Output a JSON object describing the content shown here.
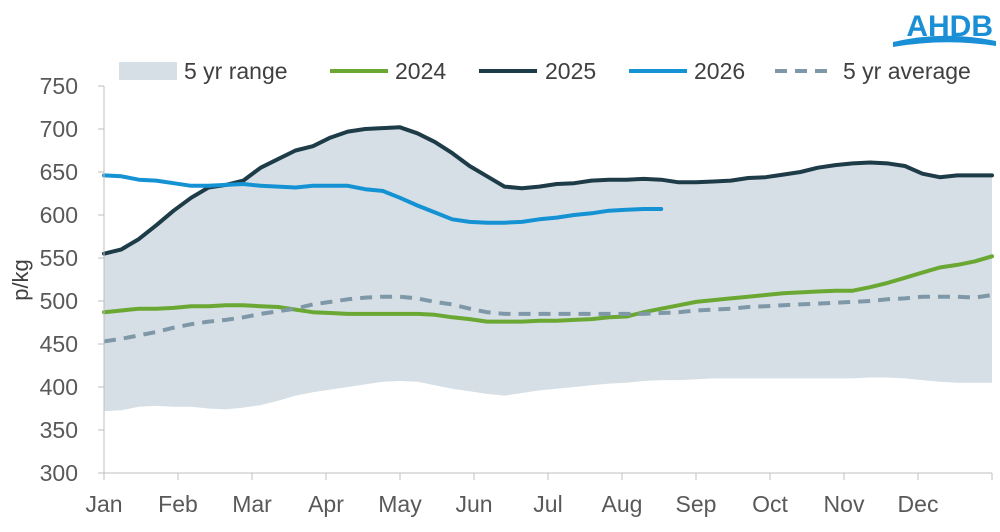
{
  "brand": {
    "logo_text": "AHDB",
    "logo_color": "#1a8fd6"
  },
  "chart_data": {
    "type": "line",
    "ylabel": "p/kg",
    "xlabel": "",
    "ylim": [
      300,
      750
    ],
    "yticks": [
      300,
      350,
      400,
      450,
      500,
      550,
      600,
      650,
      700,
      750
    ],
    "months": [
      "Jan",
      "Feb",
      "Mar",
      "Apr",
      "May",
      "Jun",
      "Jul",
      "Aug",
      "Sep",
      "Oct",
      "Nov",
      "Dec"
    ],
    "x_unit": "week of year",
    "grid": false,
    "legend_position": "top",
    "range": {
      "name": "5 yr range",
      "color": "#d6dfe5",
      "x": [
        1,
        2,
        3,
        4,
        5,
        6,
        7,
        8,
        9,
        10,
        11,
        12,
        13,
        14,
        15,
        16,
        17,
        18,
        19,
        20,
        21,
        22,
        23,
        24,
        25,
        26,
        27,
        28,
        29,
        30,
        31,
        32,
        33,
        34,
        35,
        36,
        37,
        38,
        39,
        40,
        41,
        42,
        43,
        44,
        45,
        46,
        47,
        48,
        49,
        50,
        51,
        52
      ],
      "upper": [
        555,
        560,
        572,
        588,
        605,
        620,
        632,
        635,
        640,
        655,
        665,
        675,
        680,
        690,
        697,
        700,
        701,
        702,
        695,
        685,
        672,
        657,
        645,
        633,
        631,
        633,
        636,
        637,
        640,
        641,
        641,
        642,
        641,
        638,
        638,
        639,
        640,
        643,
        644,
        647,
        650,
        655,
        658,
        660,
        661,
        660,
        657,
        648,
        644,
        646,
        646,
        646
      ],
      "lower": [
        372,
        373,
        377,
        378,
        377,
        377,
        375,
        374,
        376,
        379,
        384,
        390,
        394,
        397,
        400,
        403,
        406,
        407,
        406,
        402,
        398,
        395,
        392,
        390,
        393,
        396,
        398,
        400,
        402,
        404,
        405,
        407,
        408,
        408,
        409,
        410,
        410,
        410,
        410,
        410,
        410,
        410,
        410,
        410,
        411,
        411,
        410,
        408,
        406,
        405,
        405,
        405
      ]
    },
    "series": [
      {
        "name": "2024",
        "color": "#6aa833",
        "dash": "solid",
        "x": [
          1,
          2,
          3,
          4,
          5,
          6,
          7,
          8,
          9,
          10,
          11,
          12,
          13,
          14,
          15,
          16,
          17,
          18,
          19,
          20,
          21,
          22,
          23,
          24,
          25,
          26,
          27,
          28,
          29,
          30,
          31,
          32,
          33,
          34,
          35,
          36,
          37,
          38,
          39,
          40,
          41,
          42,
          43,
          44,
          45,
          46,
          47,
          48,
          49,
          50,
          51,
          52
        ],
        "values": [
          487,
          489,
          491,
          491,
          492,
          494,
          494,
          495,
          495,
          494,
          493,
          490,
          487,
          486,
          485,
          485,
          485,
          485,
          485,
          484,
          481,
          479,
          476,
          476,
          476,
          477,
          477,
          478,
          479,
          481,
          482,
          487,
          491,
          495,
          499,
          501,
          503,
          505,
          507,
          509,
          510,
          511,
          512,
          512,
          516,
          521,
          527,
          533,
          539,
          542,
          546,
          552
        ]
      },
      {
        "name": "2025",
        "color": "#1e3b48",
        "dash": "solid",
        "x": [
          1,
          2,
          3,
          4,
          5,
          6,
          7,
          8,
          9,
          10,
          11,
          12,
          13,
          14,
          15,
          16,
          17,
          18,
          19,
          20,
          21,
          22,
          23,
          24,
          25,
          26,
          27,
          28,
          29,
          30,
          31,
          32,
          33,
          34,
          35,
          36,
          37,
          38,
          39,
          40,
          41,
          42,
          43,
          44,
          45,
          46,
          47,
          48,
          49,
          50,
          51,
          52
        ],
        "values": [
          555,
          560,
          572,
          588,
          605,
          620,
          632,
          635,
          640,
          655,
          665,
          675,
          680,
          690,
          697,
          700,
          701,
          702,
          695,
          685,
          672,
          657,
          645,
          633,
          631,
          633,
          636,
          637,
          640,
          641,
          641,
          642,
          641,
          638,
          638,
          639,
          640,
          643,
          644,
          647,
          650,
          655,
          658,
          660,
          661,
          660,
          657,
          648,
          644,
          646,
          646,
          646
        ]
      },
      {
        "name": "2026",
        "color": "#1592d3",
        "dash": "solid",
        "x": [
          1,
          2,
          3,
          4,
          5,
          6,
          7,
          8,
          9,
          10,
          11,
          12,
          13,
          14,
          15,
          16,
          17,
          18,
          19,
          20,
          21,
          22,
          23,
          24,
          25,
          26,
          27,
          28,
          29,
          30,
          31,
          32,
          33
        ],
        "values": [
          646,
          645,
          641,
          640,
          637,
          634,
          634,
          635,
          636,
          634,
          633,
          632,
          634,
          634,
          634,
          630,
          628,
          620,
          611,
          603,
          595,
          592,
          591,
          591,
          592,
          595,
          597,
          600,
          602,
          605,
          606,
          607,
          607
        ]
      },
      {
        "name": "5 yr average",
        "color": "#7f98a8",
        "dash": "dashed",
        "x": [
          1,
          2,
          3,
          4,
          5,
          6,
          7,
          8,
          9,
          10,
          11,
          12,
          13,
          14,
          15,
          16,
          17,
          18,
          19,
          20,
          21,
          22,
          23,
          24,
          25,
          26,
          27,
          28,
          29,
          30,
          31,
          32,
          33,
          34,
          35,
          36,
          37,
          38,
          39,
          40,
          41,
          42,
          43,
          44,
          45,
          46,
          47,
          48,
          49,
          50,
          51,
          52
        ],
        "values": [
          453,
          456,
          460,
          464,
          469,
          473,
          476,
          478,
          481,
          485,
          488,
          491,
          496,
          499,
          502,
          504,
          505,
          505,
          503,
          499,
          496,
          491,
          487,
          485,
          485,
          485,
          485,
          485,
          485,
          485,
          485,
          485,
          486,
          487,
          489,
          490,
          491,
          493,
          494,
          495,
          496,
          497,
          498,
          499,
          500,
          502,
          503,
          505,
          505,
          505,
          504,
          507
        ]
      }
    ]
  }
}
